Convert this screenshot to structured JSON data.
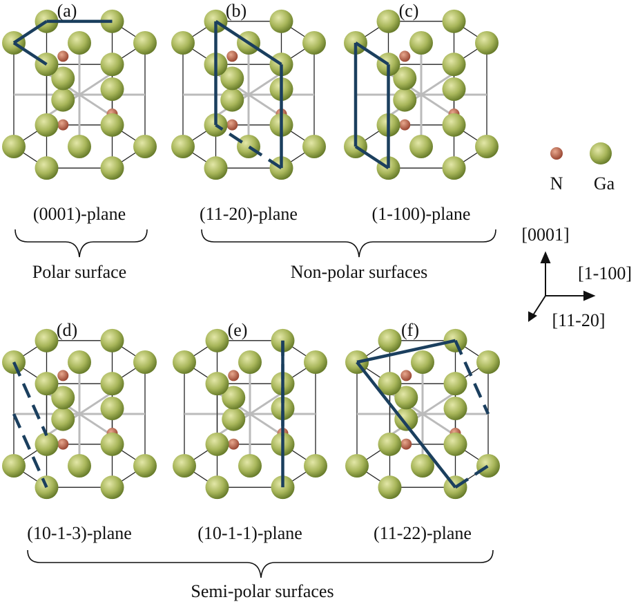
{
  "panels": [
    {
      "label": "(a)",
      "plane": "(0001)-plane"
    },
    {
      "label": "(b)",
      "plane": "(11-20)-plane"
    },
    {
      "label": "(c)",
      "plane": "(1-100)-plane"
    },
    {
      "label": "(d)",
      "plane": "(10-1-3)-plane"
    },
    {
      "label": "(e)",
      "plane": "(10-1-1)-plane"
    },
    {
      "label": "(f)",
      "plane": "(11-22)-plane"
    }
  ],
  "groups": [
    "Polar surface",
    "Non-polar surfaces",
    "Semi-polar surfaces"
  ],
  "legend": {
    "n": "N",
    "ga": "Ga"
  },
  "axes": {
    "up": "[0001]",
    "right": "[1-100]",
    "front": "[11-20]"
  }
}
